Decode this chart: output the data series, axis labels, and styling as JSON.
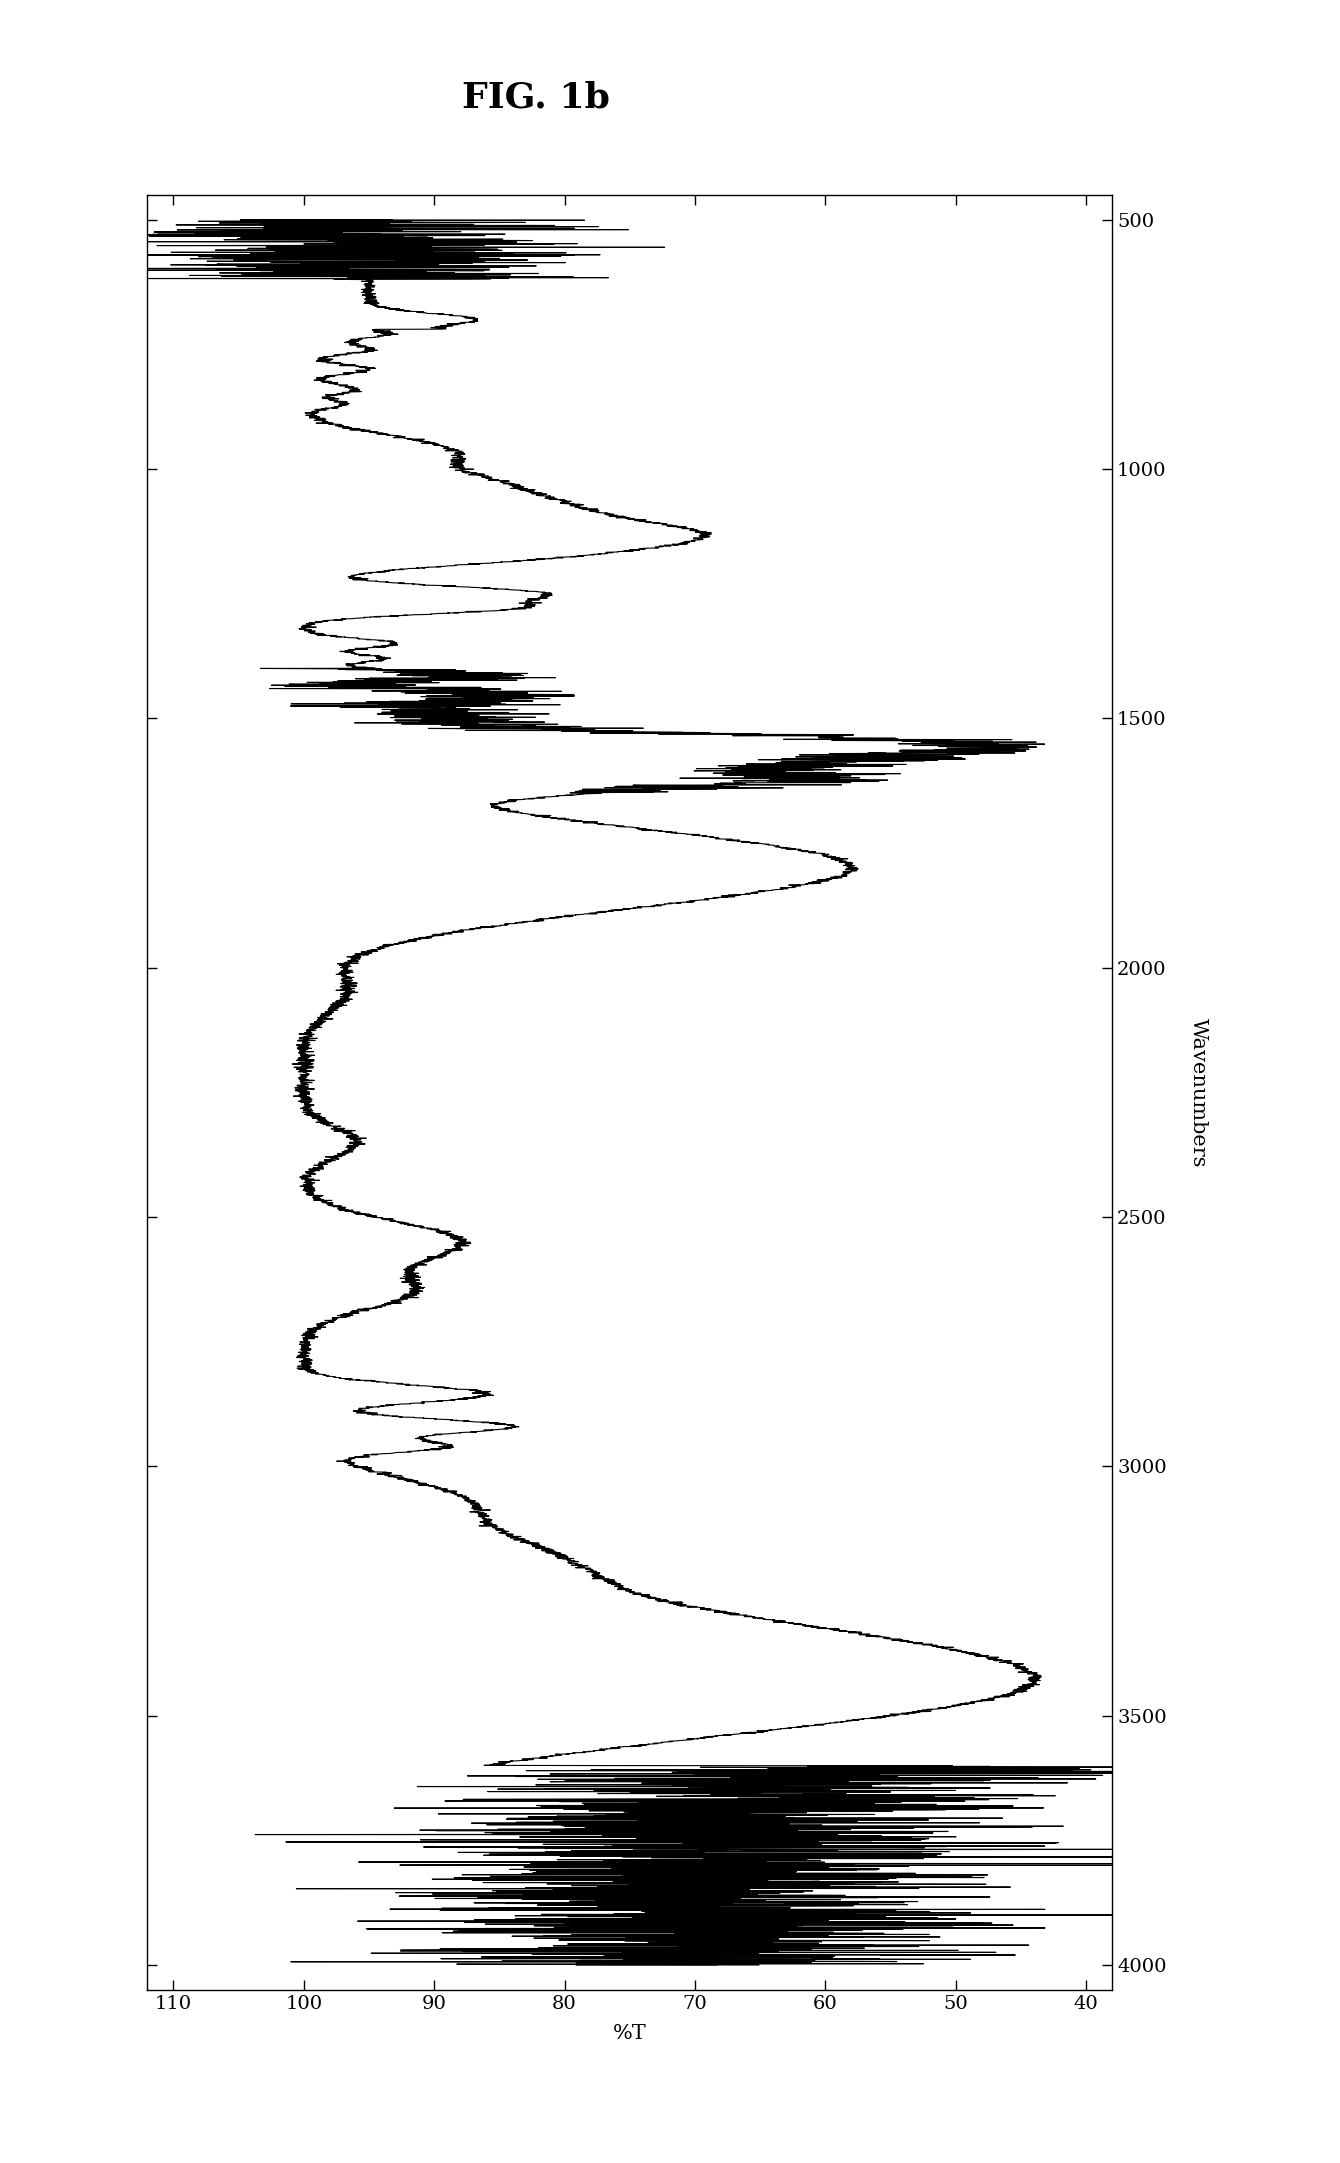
{
  "title": "FIG. 1b",
  "xlabel_label": "Wavenumbers",
  "ylabel_label": "%T",
  "xlim_T": [
    112,
    38
  ],
  "ylim_wn": [
    4050,
    450
  ],
  "xticks_T": [
    110,
    100,
    90,
    80,
    70,
    60,
    50,
    40
  ],
  "yticks_wn": [
    500,
    1000,
    1500,
    2000,
    2500,
    3000,
    3500,
    4000
  ],
  "line_color": "#000000",
  "background_color": "#ffffff",
  "title_fontsize": 26,
  "label_fontsize": 15,
  "tick_fontsize": 14
}
